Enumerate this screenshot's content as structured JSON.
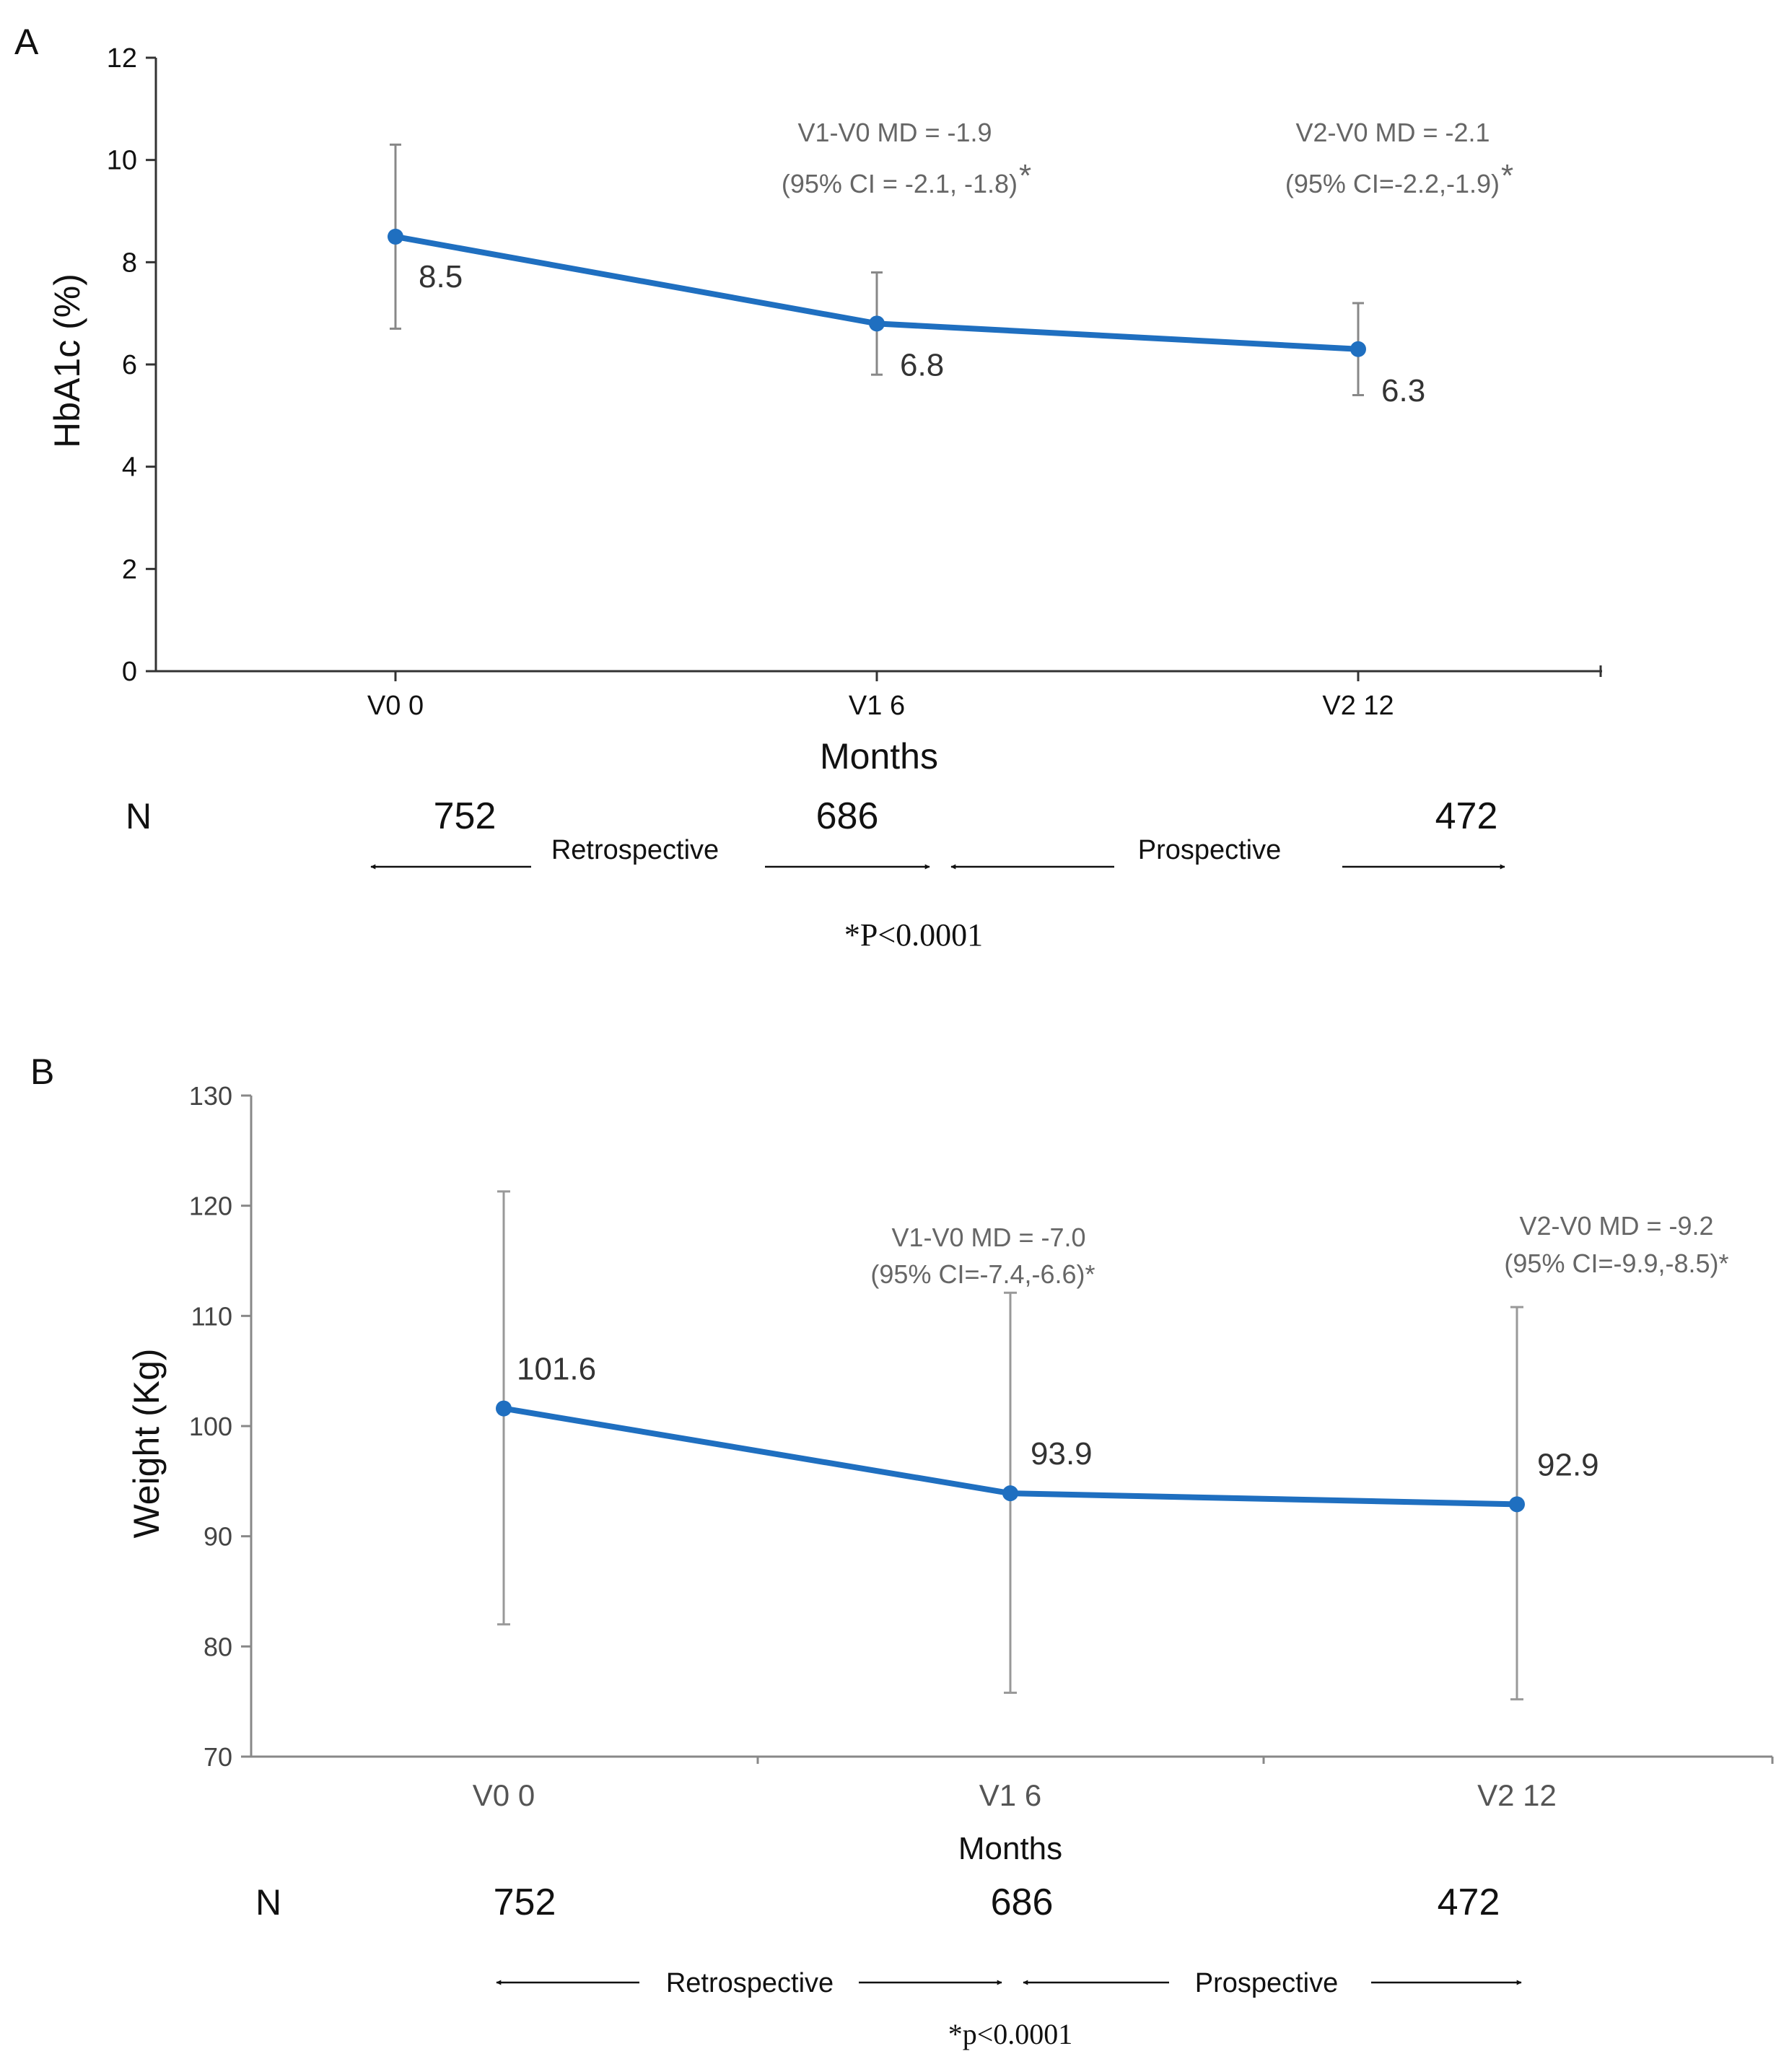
{
  "chart_data": [
    {
      "panel_label": "A",
      "type": "line",
      "xlabel": "Months",
      "ylabel": "HbA1c (%)",
      "ylim": [
        0,
        12
      ],
      "yticks": [
        0,
        2,
        4,
        6,
        8,
        10,
        12
      ],
      "categories": [
        "V0 0",
        "V1 6",
        "V2 12"
      ],
      "series": [
        {
          "name": "HbA1c",
          "values": [
            8.5,
            6.8,
            6.3
          ],
          "value_labels": [
            "8.5",
            "6.8",
            "6.3"
          ],
          "error_low": [
            6.7,
            5.8,
            5.4
          ],
          "error_high": [
            10.3,
            7.8,
            7.2
          ],
          "color": "#1f6fc0"
        }
      ],
      "annotations": [
        {
          "line1": "V1-V0 MD = -1.9",
          "line2": "(95% CI = -2.1, -1.8)",
          "star": "*"
        },
        {
          "line1": "V2-V0 MD = -2.1",
          "line2": "(95% CI=-2.2,-1.9)",
          "star": "*"
        }
      ],
      "n_label": "N",
      "n_values": [
        "752",
        "686",
        "472"
      ],
      "retrospective_label": "Retrospective",
      "prospective_label": "Prospective",
      "footnote": "*P<0.0001"
    },
    {
      "panel_label": "B",
      "type": "line",
      "xlabel": "Months",
      "ylabel": "Weight (Kg)",
      "ylim": [
        70,
        130
      ],
      "yticks": [
        70,
        80,
        90,
        100,
        110,
        120,
        130
      ],
      "categories": [
        "V0 0",
        "V1 6",
        "V2 12"
      ],
      "series": [
        {
          "name": "Weight",
          "values": [
            101.6,
            93.9,
            92.9
          ],
          "value_labels": [
            "101.6",
            "93.9",
            "92.9"
          ],
          "error_low": [
            82,
            75.8,
            75.2
          ],
          "error_high": [
            121.3,
            112.1,
            110.8
          ],
          "color": "#1f6fc0"
        }
      ],
      "annotations": [
        {
          "line1": "V1-V0 MD = -7.0",
          "line2": "(95% CI=-7.4,-6.6)*"
        },
        {
          "line1": "V2-V0 MD  = -9.2",
          "line2": "(95% CI=-9.9,-8.5)*"
        }
      ],
      "n_label": "N",
      "n_values": [
        "752",
        "686",
        "472"
      ],
      "retrospective_label": "Retrospective",
      "prospective_label": "Prospective",
      "footnote": "*p<0.0001"
    }
  ]
}
